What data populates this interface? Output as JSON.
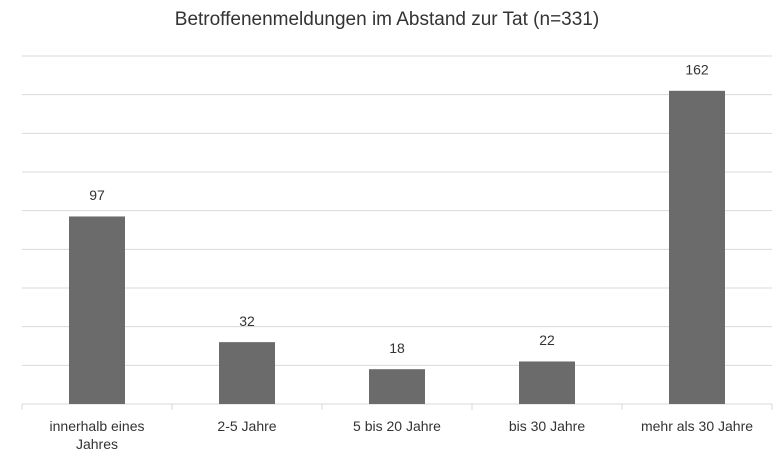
{
  "chart_data": {
    "type": "bar",
    "title": "Betroffenenmeldungen im Abstand zur Tat (n=331)",
    "categories": [
      "innerhalb eines Jahres",
      "2-5 Jahre",
      "5 bis 20 Jahre",
      "bis 30 Jahre",
      "mehr als 30 Jahre"
    ],
    "values": [
      97,
      32,
      18,
      22,
      162
    ],
    "color": "#6b6b6b",
    "ylim": [
      0,
      180
    ],
    "yticks": [
      0,
      20,
      40,
      60,
      80,
      100,
      120,
      140,
      160,
      180
    ],
    "grid": true
  }
}
